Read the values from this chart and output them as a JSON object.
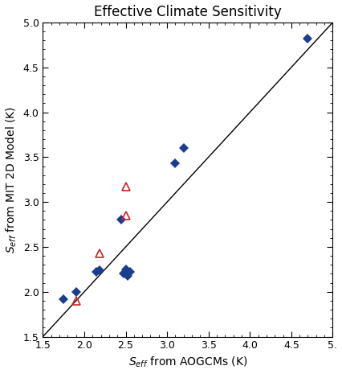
{
  "title": "Effective Climate Sensitivity",
  "xlabel": "$S_{eff}$ from AOGCMs (K)",
  "ylabel": "$S_{eff}$ from MIT 2D Model (K)",
  "xlim": [
    1.5,
    5.0
  ],
  "ylim": [
    1.5,
    5.0
  ],
  "xticks": [
    1.5,
    2.0,
    2.5,
    3.0,
    3.5,
    4.0,
    4.5,
    5.0
  ],
  "yticks": [
    1.5,
    2.0,
    2.5,
    3.0,
    3.5,
    4.0,
    4.5,
    5.0
  ],
  "xtick_labels": [
    "1.5",
    "2.0",
    "2.5",
    "3.0",
    "3.5",
    "4.0",
    "4.5",
    "5."
  ],
  "ytick_labels": [
    "1.5",
    "2.0",
    "2.5",
    "3.0",
    "3.5",
    "4.0",
    "4.5",
    "5.0"
  ],
  "one_to_one_line": true,
  "blue_diamonds": [
    [
      1.75,
      1.92
    ],
    [
      1.9,
      2.0
    ],
    [
      2.15,
      2.22
    ],
    [
      2.18,
      2.24
    ],
    [
      2.45,
      2.8
    ],
    [
      2.48,
      2.2
    ],
    [
      2.5,
      2.25
    ],
    [
      2.52,
      2.18
    ],
    [
      2.55,
      2.22
    ],
    [
      3.1,
      3.43
    ],
    [
      3.2,
      3.6
    ],
    [
      4.7,
      4.82
    ]
  ],
  "red_triangles": [
    [
      1.9,
      1.9
    ],
    [
      2.18,
      2.43
    ],
    [
      2.5,
      2.85
    ],
    [
      2.5,
      3.17
    ]
  ],
  "blue_color": "#1a3d8f",
  "red_color": "#cc2222",
  "background_color": "#ffffff",
  "diamond_markersize": 6,
  "triangle_markersize": 7,
  "title_fontsize": 12,
  "label_fontsize": 10,
  "tick_fontsize": 9
}
